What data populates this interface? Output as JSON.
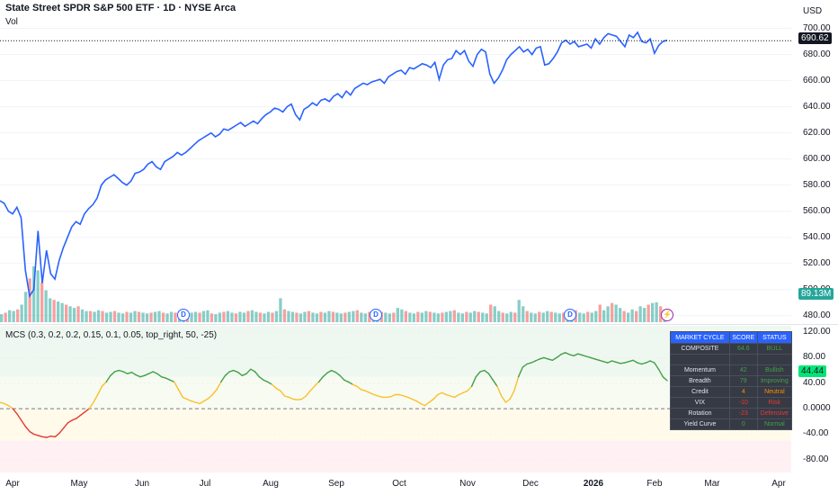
{
  "header": {
    "title": "State Street SPDR S&P 500 ETF · 1D · NYSE Arca",
    "vol_label": "Vol",
    "currency": "USD"
  },
  "price_axis": {
    "ticks": [
      "700.00",
      "680.00",
      "660.00",
      "640.00",
      "620.00",
      "600.00",
      "580.00",
      "560.00",
      "540.00",
      "520.00",
      "500.00",
      "480.00"
    ],
    "last_price": "690.62",
    "volume_label": "89.13M"
  },
  "indicator": {
    "title": "MCS (0.3, 0.2, 0.2, 0.15, 0.1, 0.05, top_right, 50, -25)",
    "ticks": [
      "120.00",
      "80.00",
      "40.00",
      "0.0000",
      "-40.00",
      "-80.00"
    ],
    "last_value": "44.44"
  },
  "x_axis": {
    "labels": [
      {
        "text": "Apr",
        "bold": false
      },
      {
        "text": "May",
        "bold": false
      },
      {
        "text": "Jun",
        "bold": false
      },
      {
        "text": "Jul",
        "bold": false
      },
      {
        "text": "Aug",
        "bold": false
      },
      {
        "text": "Sep",
        "bold": false
      },
      {
        "text": "Oct",
        "bold": false
      },
      {
        "text": "Nov",
        "bold": false
      },
      {
        "text": "Dec",
        "bold": false
      },
      {
        "text": "2026",
        "bold": true
      },
      {
        "text": "Feb",
        "bold": false
      },
      {
        "text": "Mar",
        "bold": false
      },
      {
        "text": "Apr",
        "bold": false
      }
    ]
  },
  "events": {
    "dividend": "D",
    "split": "⚡"
  },
  "table": {
    "headers": [
      "MARKET CYCLE",
      "SCORE",
      "STATUS"
    ],
    "composite": {
      "label": "COMPOSITE",
      "score": "64.6",
      "status": "BULL"
    },
    "rows": [
      {
        "label": "Momentum",
        "score": "42",
        "status": "Bullish",
        "tone": "pos"
      },
      {
        "label": "Breadth",
        "score": "79",
        "status": "Improving",
        "tone": "pos"
      },
      {
        "label": "Credit",
        "score": "4",
        "status": "Neutral",
        "tone": "warn"
      },
      {
        "label": "VIX",
        "score": "-10",
        "status": "Risk",
        "tone": "neg"
      },
      {
        "label": "Rotation",
        "score": "-23",
        "status": "Defensive",
        "tone": "neg"
      },
      {
        "label": "Yield Curve",
        "score": "0",
        "status": "Normal",
        "tone": "pos"
      }
    ]
  },
  "colors": {
    "price_line": "#2962ff",
    "vol_up": "#26a69a",
    "vol_down": "#ef5350",
    "mcs_bull": "#43a047",
    "mcs_neutral": "#fbc02d",
    "mcs_bear": "#e53935"
  },
  "chart_data": [
    {
      "type": "line",
      "series": [
        {
          "values": [
            568,
            566,
            560,
            558,
            563,
            555,
            515,
            495,
            500,
            545,
            505,
            530,
            512,
            508,
            522,
            532,
            540,
            548,
            552,
            550,
            558,
            562,
            565,
            570,
            580,
            584,
            586,
            588,
            585,
            582,
            580,
            583,
            589,
            590,
            592,
            596,
            598,
            594,
            592,
            598,
            600,
            602,
            605,
            603,
            605,
            608,
            611,
            614,
            616,
            618,
            620,
            617,
            619,
            623,
            622,
            624,
            626,
            628,
            625,
            627,
            629,
            627,
            631,
            634,
            636,
            639,
            638,
            636,
            640,
            642,
            634,
            630,
            638,
            640,
            643,
            641,
            645,
            646,
            644,
            648,
            650,
            647,
            652,
            649,
            654,
            656,
            658,
            657,
            659,
            660,
            661,
            658,
            663,
            665,
            667,
            668,
            665,
            670,
            669,
            671,
            673,
            672,
            670,
            674,
            661,
            672,
            676,
            677,
            683,
            680,
            683,
            675,
            671,
            680,
            684,
            682,
            665,
            658,
            662,
            668,
            676,
            680,
            683,
            686,
            682,
            684,
            680,
            685,
            686,
            672,
            673,
            677,
            682,
            689,
            691,
            688,
            690,
            686,
            687,
            688,
            685,
            692,
            688,
            693,
            696,
            695,
            694,
            690,
            686,
            695,
            693,
            697,
            690,
            689,
            692,
            681,
            687,
            690,
            691
          ]
        }
      ],
      "ylim": [
        475,
        708
      ]
    },
    {
      "type": "line",
      "series": [
        {
          "values": [
            10,
            8,
            5,
            0,
            -8,
            -18,
            -28,
            -36,
            -40,
            -42,
            -44,
            -45,
            -43,
            -44,
            -38,
            -30,
            -22,
            -18,
            -15,
            -10,
            -5,
            0,
            10,
            22,
            35,
            42,
            52,
            58,
            60,
            58,
            55,
            57,
            53,
            50,
            52,
            55,
            58,
            55,
            50,
            48,
            45,
            42,
            30,
            18,
            15,
            12,
            10,
            8,
            12,
            16,
            22,
            30,
            42,
            52,
            58,
            60,
            57,
            52,
            55,
            62,
            58,
            50,
            45,
            42,
            38,
            32,
            28,
            20,
            18,
            15,
            14,
            15,
            20,
            28,
            35,
            42,
            50,
            56,
            60,
            57,
            52,
            45,
            42,
            38,
            35,
            30,
            28,
            25,
            22,
            20,
            18,
            18,
            19,
            22,
            22,
            20,
            18,
            15,
            12,
            8,
            5,
            10,
            15,
            22,
            25,
            22,
            20,
            18,
            22,
            25,
            28,
            35,
            50,
            58,
            60,
            55,
            45,
            35,
            20,
            10,
            15,
            28,
            50,
            65,
            70,
            72,
            75,
            78,
            80,
            78,
            76,
            80,
            85,
            88,
            85,
            83,
            86,
            84,
            82,
            80,
            78,
            76,
            74,
            72,
            75,
            73,
            71,
            72,
            74,
            76,
            72,
            70,
            72,
            75,
            72,
            62,
            50,
            44
          ]
        }
      ],
      "ylim": [
        -100,
        130
      ]
    },
    {
      "type": "bar",
      "series": [
        {
          "values": [
            10,
            12,
            15,
            14,
            16,
            22,
            38,
            55,
            70,
            65,
            50,
            40,
            30,
            28,
            26,
            24,
            22,
            20,
            18,
            20,
            16,
            14,
            14,
            13,
            15,
            14,
            12,
            13,
            14,
            12,
            11,
            13,
            12,
            14,
            13,
            12,
            11,
            12,
            13,
            14,
            12,
            11,
            13,
            12,
            14,
            13,
            11,
            12,
            13,
            12,
            14,
            15,
            11,
            10,
            12,
            13,
            14,
            12,
            11,
            13,
            12,
            14,
            15,
            13,
            12,
            11,
            13,
            12,
            14,
            30,
            16,
            14,
            13,
            12,
            11,
            13,
            14,
            12,
            11,
            13,
            12,
            14,
            13,
            12,
            11,
            12,
            13,
            14,
            15,
            12,
            11,
            13,
            12,
            14,
            13,
            12,
            11,
            12,
            18,
            16,
            14,
            12,
            11,
            13,
            12,
            14,
            13,
            12,
            11,
            12,
            13,
            14,
            15,
            12,
            11,
            13,
            12,
            14,
            13,
            12,
            11,
            22,
            20,
            14,
            12,
            11,
            13,
            12,
            28,
            20,
            14,
            12,
            11,
            13,
            12,
            14,
            13,
            12,
            11,
            12,
            13,
            14,
            15,
            12,
            11,
            13,
            12,
            14,
            22,
            15,
            20,
            24,
            22,
            18,
            14,
            12,
            16,
            14,
            20,
            18,
            22,
            24,
            25,
            20,
            16
          ]
        }
      ]
    }
  ]
}
